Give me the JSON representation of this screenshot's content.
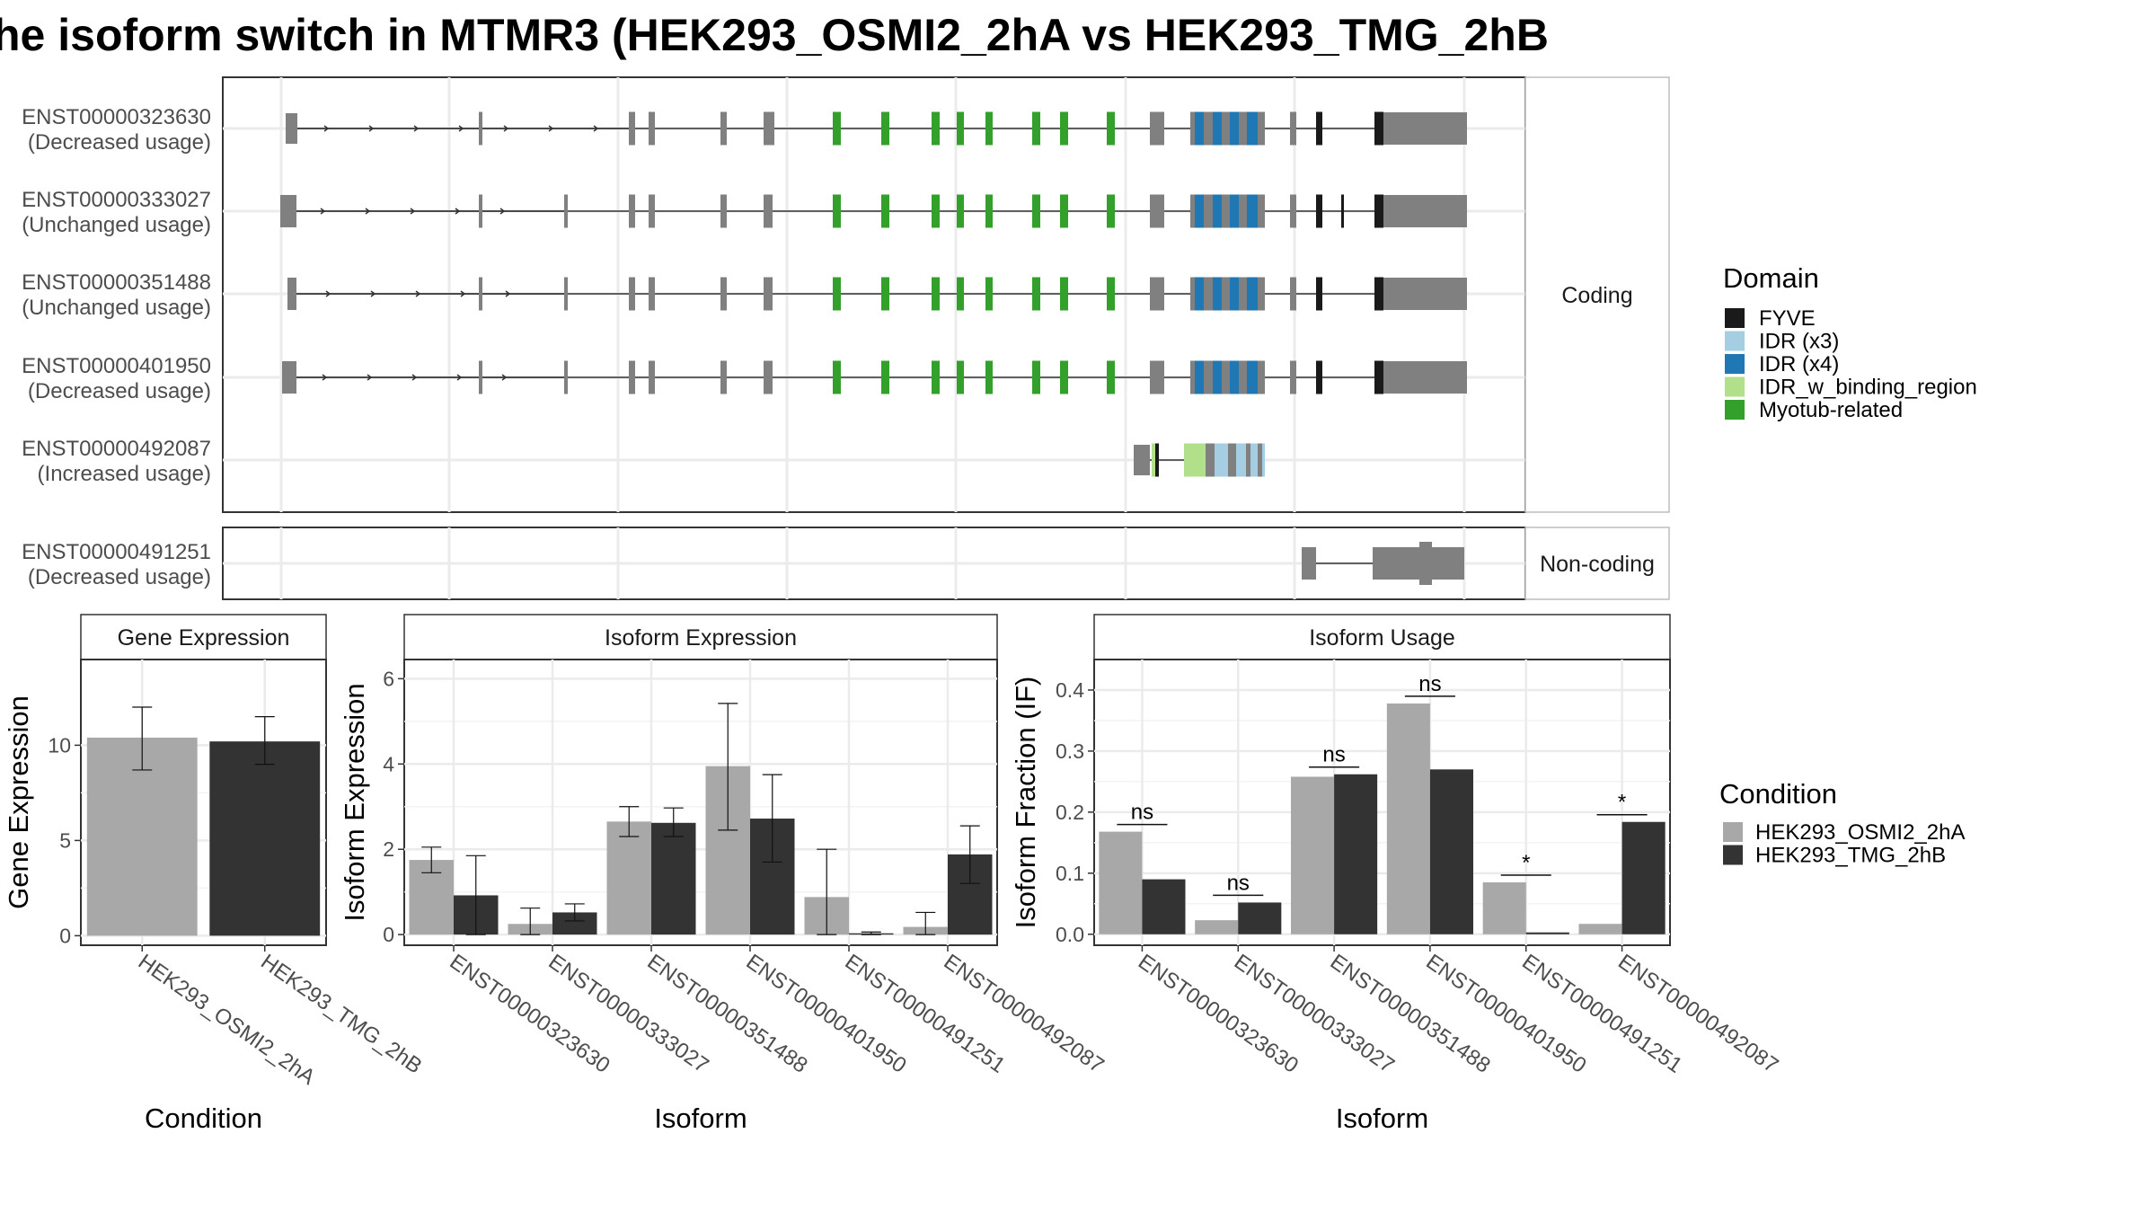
{
  "title": "he isoform switch in MTMR3 (HEK293_OSMI2_2hA vs HEK293_TMG_2hB",
  "colors": {
    "exon": "#808080",
    "FYVE": "#1a1a1a",
    "IDR (x3)": "#a6cee3",
    "IDR (x4)": "#1f78b4",
    "IDR_w_binding_region": "#b2df8a",
    "Myotub-related": "#33a02c",
    "cond1": "#a8a8a8",
    "cond2": "#333333"
  },
  "facets": {
    "coding": "Coding",
    "noncoding": "Non-coding"
  },
  "legend_domain": {
    "title": "Domain",
    "items": [
      "FYVE",
      "IDR (x3)",
      "IDR (x4)",
      "IDR_w_binding_region",
      "Myotub-related"
    ]
  },
  "legend_condition": {
    "title": "Condition",
    "items": [
      "HEK293_OSMI2_2hA",
      "HEK293_TMG_2hB"
    ]
  },
  "transcripts": [
    {
      "id": "ENST00000323630",
      "usage": "(Decreased usage)",
      "group": "coding"
    },
    {
      "id": "ENST00000333027",
      "usage": "(Unchanged usage)",
      "group": "coding"
    },
    {
      "id": "ENST00000351488",
      "usage": "(Unchanged usage)",
      "group": "coding"
    },
    {
      "id": "ENST00000401950",
      "usage": "(Decreased usage)",
      "group": "coding"
    },
    {
      "id": "ENST00000492087",
      "usage": "(Increased usage)",
      "group": "coding"
    },
    {
      "id": "ENST00000491251",
      "usage": "(Decreased usage)",
      "group": "noncoding"
    }
  ],
  "chart_data": [
    {
      "type": "bar",
      "title": "Gene Expression",
      "xlabel": "Condition",
      "ylabel": "Gene Expression",
      "categories": [
        "HEK293_OSMI2_2hA",
        "HEK293_TMG_2hB"
      ],
      "values": [
        10.4,
        10.2
      ],
      "errors": [
        [
          8.7,
          12.0
        ],
        [
          9.0,
          11.5
        ]
      ],
      "ylim": [
        -0.5,
        14.5
      ],
      "yticks": [
        0,
        5,
        10
      ],
      "grid": true
    },
    {
      "type": "bar",
      "title": "Isoform Expression",
      "xlabel": "Isoform",
      "ylabel": "Isoform Expression",
      "categories": [
        "ENST00000323630",
        "ENST00000333027",
        "ENST00000351488",
        "ENST00000401950",
        "ENST00000491251",
        "ENST00000492087"
      ],
      "series": [
        {
          "name": "HEK293_OSMI2_2hA",
          "values": [
            1.75,
            0.25,
            2.65,
            3.95,
            0.88,
            0.18
          ],
          "errors": [
            [
              1.45,
              2.05
            ],
            [
              0.0,
              0.62
            ],
            [
              2.3,
              3.0
            ],
            [
              2.45,
              5.42
            ],
            [
              0.0,
              2.0
            ],
            [
              0.0,
              0.52
            ]
          ]
        },
        {
          "name": "HEK293_TMG_2hB",
          "values": [
            0.92,
            0.52,
            2.62,
            2.72,
            0.03,
            1.88
          ],
          "errors": [
            [
              0.0,
              1.85
            ],
            [
              0.32,
              0.72
            ],
            [
              2.3,
              2.97
            ],
            [
              1.7,
              3.75
            ],
            [
              0.0,
              0.06
            ],
            [
              1.2,
              2.55
            ]
          ]
        }
      ],
      "ylim": [
        -0.25,
        6.45
      ],
      "yticks": [
        0,
        2,
        4,
        6
      ],
      "grid": true
    },
    {
      "type": "bar",
      "title": "Isoform Usage",
      "xlabel": "Isoform",
      "ylabel": "Isoform Fraction (IF)",
      "categories": [
        "ENST00000323630",
        "ENST00000333027",
        "ENST00000351488",
        "ENST00000401950",
        "ENST00000491251",
        "ENST00000492087"
      ],
      "series": [
        {
          "name": "HEK293_OSMI2_2hA",
          "values": [
            0.168,
            0.023,
            0.258,
            0.378,
            0.085,
            0.017
          ]
        },
        {
          "name": "HEK293_TMG_2hB",
          "values": [
            0.09,
            0.052,
            0.262,
            0.27,
            0.003,
            0.184
          ]
        }
      ],
      "significance": [
        "ns",
        "ns",
        "ns",
        "ns",
        "*",
        "*"
      ],
      "ylim": [
        -0.018,
        0.45
      ],
      "yticks": [
        0.0,
        0.1,
        0.2,
        0.3,
        0.4
      ],
      "grid": true
    }
  ]
}
